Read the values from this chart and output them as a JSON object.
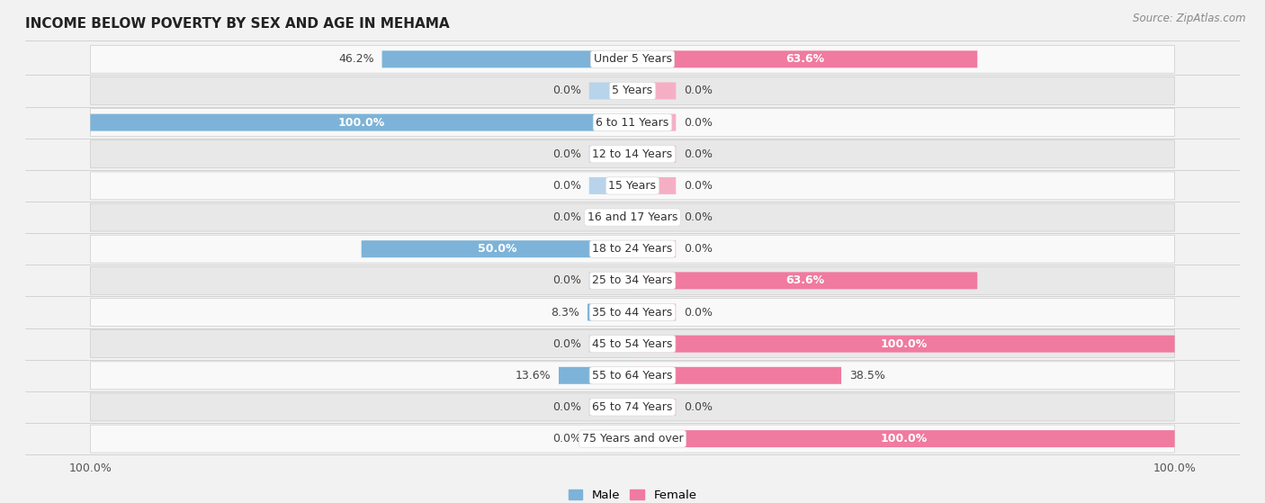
{
  "title": "INCOME BELOW POVERTY BY SEX AND AGE IN MEHAMA",
  "source": "Source: ZipAtlas.com",
  "categories": [
    "Under 5 Years",
    "5 Years",
    "6 to 11 Years",
    "12 to 14 Years",
    "15 Years",
    "16 and 17 Years",
    "18 to 24 Years",
    "25 to 34 Years",
    "35 to 44 Years",
    "45 to 54 Years",
    "55 to 64 Years",
    "65 to 74 Years",
    "75 Years and over"
  ],
  "male": [
    46.2,
    0.0,
    100.0,
    0.0,
    0.0,
    0.0,
    50.0,
    0.0,
    8.3,
    0.0,
    13.6,
    0.0,
    0.0
  ],
  "female": [
    63.6,
    0.0,
    0.0,
    0.0,
    0.0,
    0.0,
    0.0,
    63.6,
    0.0,
    100.0,
    38.5,
    0.0,
    100.0
  ],
  "male_color": "#7db3d8",
  "female_color": "#f07aa0",
  "male_stub_color": "#b8d4ea",
  "female_stub_color": "#f5afc5",
  "male_label": "Male",
  "female_label": "Female",
  "bg_color": "#f2f2f2",
  "row_bg_color": "#e8e8e8",
  "row_white_color": "#f9f9f9",
  "max_val": 100.0,
  "stub_val": 8.0,
  "title_fontsize": 11,
  "label_fontsize": 9,
  "category_fontsize": 9,
  "axis_label_fontsize": 9
}
